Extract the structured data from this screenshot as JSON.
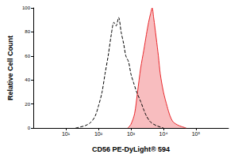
{
  "chart_data": {
    "type": "histogram_overlay",
    "x_label": "CD56 PE-DyLight® 594",
    "y_label": "Relative Cell Count",
    "log": "x",
    "grid": false,
    "xlim": [
      1,
      1000000
    ],
    "xticks": [
      {
        "value": 10,
        "label": "10¹"
      },
      {
        "value": 100,
        "label": "10²"
      },
      {
        "value": 1000,
        "label": "10³"
      },
      {
        "value": 10000,
        "label": "10⁴"
      },
      {
        "value": 100000,
        "label": "10⁵"
      }
    ],
    "ylim": [
      0,
      100
    ],
    "yticks": [
      0,
      20,
      40,
      60,
      80,
      100
    ],
    "series": [
      {
        "type": "line",
        "color": "#000000",
        "line_style": "dashed",
        "x": [
          20,
          40,
          60,
          80,
          100,
          130,
          160,
          200,
          250,
          300,
          350,
          420,
          500,
          600,
          700,
          850,
          1000,
          1200,
          1500,
          2000,
          2500,
          3000,
          4000,
          6000,
          10000
        ],
        "values": [
          0,
          2,
          5,
          10,
          18,
          30,
          45,
          60,
          78,
          88,
          85,
          92,
          80,
          70,
          60,
          55,
          45,
          38,
          30,
          22,
          15,
          10,
          5,
          2,
          0
        ]
      },
      {
        "type": "area",
        "color": "#e8262a",
        "line_style": "solid",
        "x": [
          800,
          1000,
          1300,
          1600,
          2000,
          2500,
          3000,
          3500,
          4000,
          4500,
          5000,
          6000,
          7000,
          8000,
          10000,
          13000,
          16000,
          20000,
          30000,
          50000
        ],
        "values": [
          0,
          3,
          12,
          30,
          50,
          65,
          78,
          88,
          95,
          100,
          92,
          75,
          60,
          45,
          30,
          18,
          10,
          5,
          2,
          0
        ]
      }
    ]
  }
}
